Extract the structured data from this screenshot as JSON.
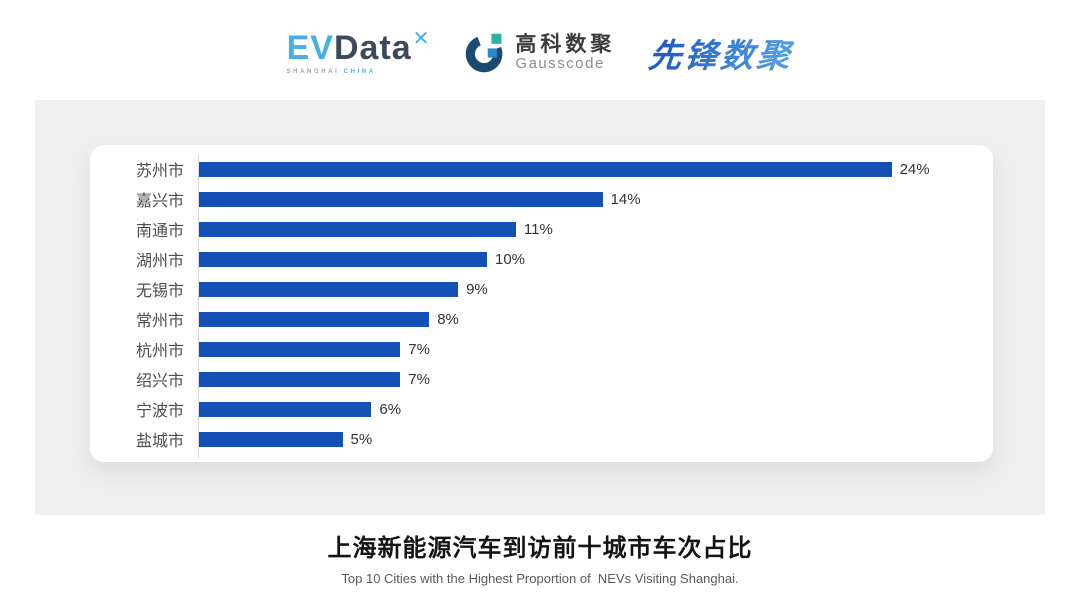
{
  "header": {
    "evdata_logo": {
      "ev": "EV",
      "data": "Data",
      "x_glyph": "✕",
      "sub_left": "SHANGHAI",
      "sub_right": "CHINA",
      "ev_color": "#45b0e5",
      "data_color": "#3d4a5c"
    },
    "gausscode_logo": {
      "cn": "高科数聚",
      "en": "Gausscode",
      "mark_navy": "#1d4a70",
      "mark_teal": "#2cb39e",
      "mark_blue": "#2e86c8"
    },
    "xianfeng_logo": {
      "text": "先锋数聚",
      "color": "#2e6ed2"
    }
  },
  "chart_data": {
    "type": "bar",
    "orientation": "horizontal",
    "categories": [
      "苏州市",
      "嘉兴市",
      "南通市",
      "湖州市",
      "无锡市",
      "常州市",
      "杭州市",
      "绍兴市",
      "宁波市",
      "盐城市"
    ],
    "values": [
      24,
      14,
      11,
      10,
      9,
      8,
      7,
      7,
      6,
      5
    ],
    "value_labels": [
      "24%",
      "14%",
      "11%",
      "10%",
      "9%",
      "8%",
      "7%",
      "7%",
      "6%",
      "5%"
    ],
    "bar_color": "#1450b4",
    "axis_color": "#d9d9d9",
    "xlim": [
      0,
      25
    ],
    "grid": false,
    "legend": false,
    "title": "上海新能源汽车到访前十城市车次占比",
    "subtitle": "Top 10 Cities with the Highest Proportion of  NEVs Visiting Shanghai."
  },
  "footer": {
    "title": "上海新能源汽车到访前十城市车次占比",
    "subtitle": "Top 10 Cities with the Highest Proportion of  NEVs Visiting Shanghai."
  }
}
